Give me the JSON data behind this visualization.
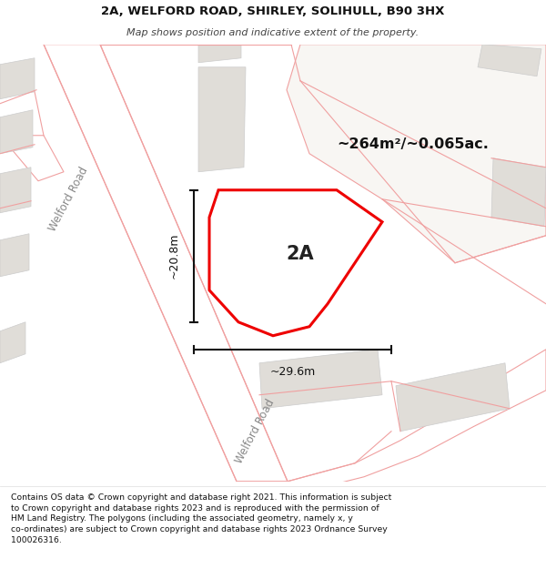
{
  "title_line1": "2A, WELFORD ROAD, SHIRLEY, SOLIHULL, B90 3HX",
  "title_line2": "Map shows position and indicative extent of the property.",
  "map_bg": "#f5f3f0",
  "road_color": "#ffffff",
  "road_border_color": "#f0b8b8",
  "building_color": "#e0ddd8",
  "property_outline_color": "#ee0000",
  "property_fill": "#ffffff",
  "footer_text": "Contains OS data © Crown copyright and database right 2021. This information is subject to Crown copyright and database rights 2023 and is reproduced with the permission of HM Land Registry. The polygons (including the associated geometry, namely x, y co-ordinates) are subject to Crown copyright and database rights 2023 Ordnance Survey 100026316.",
  "area_label": "~264m²/~0.065ac.",
  "property_label": "2A",
  "dim_horizontal": "~29.6m",
  "dim_vertical": "~20.8m",
  "road_label_left": "Welford Road",
  "road_label_bottom": "Welford Road",
  "pink": "#f0a0a0",
  "light_pink": "#f5c8c8"
}
